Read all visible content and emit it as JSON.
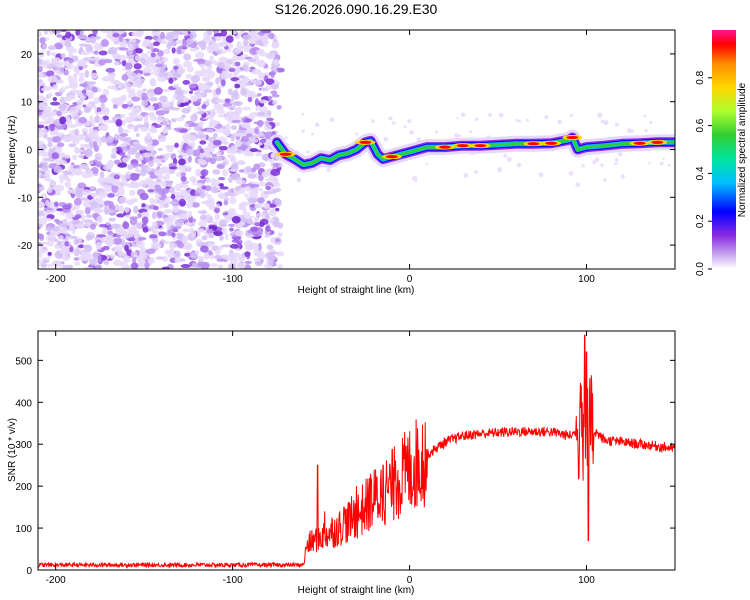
{
  "figure_title": "S126.2026.090.16.29.E30",
  "chart_data": [
    {
      "type": "heatmap",
      "name": "spectrogram",
      "xlabel": "Height of straight line (km)",
      "ylabel": "Frequency (Hz)",
      "xlim": [
        -210,
        150
      ],
      "ylim": [
        -25,
        25
      ],
      "xticks": [
        -200,
        -100,
        0,
        100
      ],
      "yticks": [
        -20,
        -10,
        0,
        10,
        20
      ],
      "noise_region_x": [
        -210,
        -73
      ],
      "ridge": {
        "description": "narrow high-amplitude ridge near 0 Hz",
        "x": [
          -75,
          -70,
          -65,
          -60,
          -55,
          -50,
          -45,
          -40,
          -35,
          -30,
          -25,
          -22,
          -18,
          -15,
          -10,
          -5,
          0,
          5,
          10,
          20,
          30,
          40,
          50,
          60,
          70,
          80,
          90,
          92,
          95,
          100,
          110,
          120,
          130,
          140,
          150
        ],
        "freq": [
          1.5,
          -1.0,
          -2.0,
          -3.2,
          -2.8,
          -1.8,
          -2.2,
          -1.2,
          -0.8,
          0.0,
          1.5,
          1.8,
          -1.0,
          -2.0,
          -1.5,
          -1.0,
          -0.5,
          0.0,
          0.5,
          0.5,
          0.8,
          0.8,
          1.0,
          1.2,
          1.2,
          1.3,
          2.0,
          2.5,
          0.0,
          0.5,
          0.8,
          1.2,
          1.3,
          1.5,
          1.5
        ]
      },
      "colorbar": {
        "label": "Normalized spectral amplitude",
        "range": [
          0,
          1
        ],
        "ticks": [
          "0.0",
          "0.2",
          "0.4",
          "0.6",
          "0.8"
        ],
        "colors": [
          "#ffffff",
          "#c8a8f0",
          "#8a2be2",
          "#0000ff",
          "#00bfff",
          "#00e5a0",
          "#32cd32",
          "#adff2f",
          "#ffd700",
          "#ff8c00",
          "#ff0000",
          "#ff1493"
        ]
      }
    },
    {
      "type": "line",
      "name": "snr",
      "xlabel": "Height of straight line (km)",
      "ylabel": "SNR (10 * v/v)",
      "xlim": [
        -210,
        150
      ],
      "ylim": [
        0,
        570
      ],
      "xticks": [
        -200,
        -100,
        0,
        100
      ],
      "yticks": [
        0,
        100,
        200,
        300,
        400,
        500
      ],
      "color": "#ff0000",
      "envelope": {
        "x": [
          -210,
          -60,
          -58,
          -50,
          -40,
          -30,
          -20,
          -10,
          0,
          10,
          20,
          30,
          40,
          50,
          60,
          70,
          80,
          90,
          95,
          100,
          105,
          110,
          120,
          130,
          140,
          150
        ],
        "y": [
          12,
          12,
          60,
          80,
          100,
          130,
          170,
          200,
          240,
          275,
          305,
          320,
          325,
          328,
          330,
          330,
          330,
          320,
          330,
          330,
          330,
          310,
          305,
          300,
          295,
          290
        ]
      },
      "spikes": [
        {
          "x": -52,
          "y": 250
        },
        {
          "x": -48,
          "y": 140
        },
        {
          "x": -37,
          "y": 150
        },
        {
          "x": -30,
          "y": 200
        },
        {
          "x": -22,
          "y": 230
        },
        {
          "x": -15,
          "y": 250
        },
        {
          "x": -8,
          "y": 260
        },
        {
          "x": 97,
          "y": 440
        },
        {
          "x": 99,
          "y": 560
        },
        {
          "x": 100,
          "y": 520
        },
        {
          "x": 101,
          "y": 70
        }
      ]
    }
  ]
}
